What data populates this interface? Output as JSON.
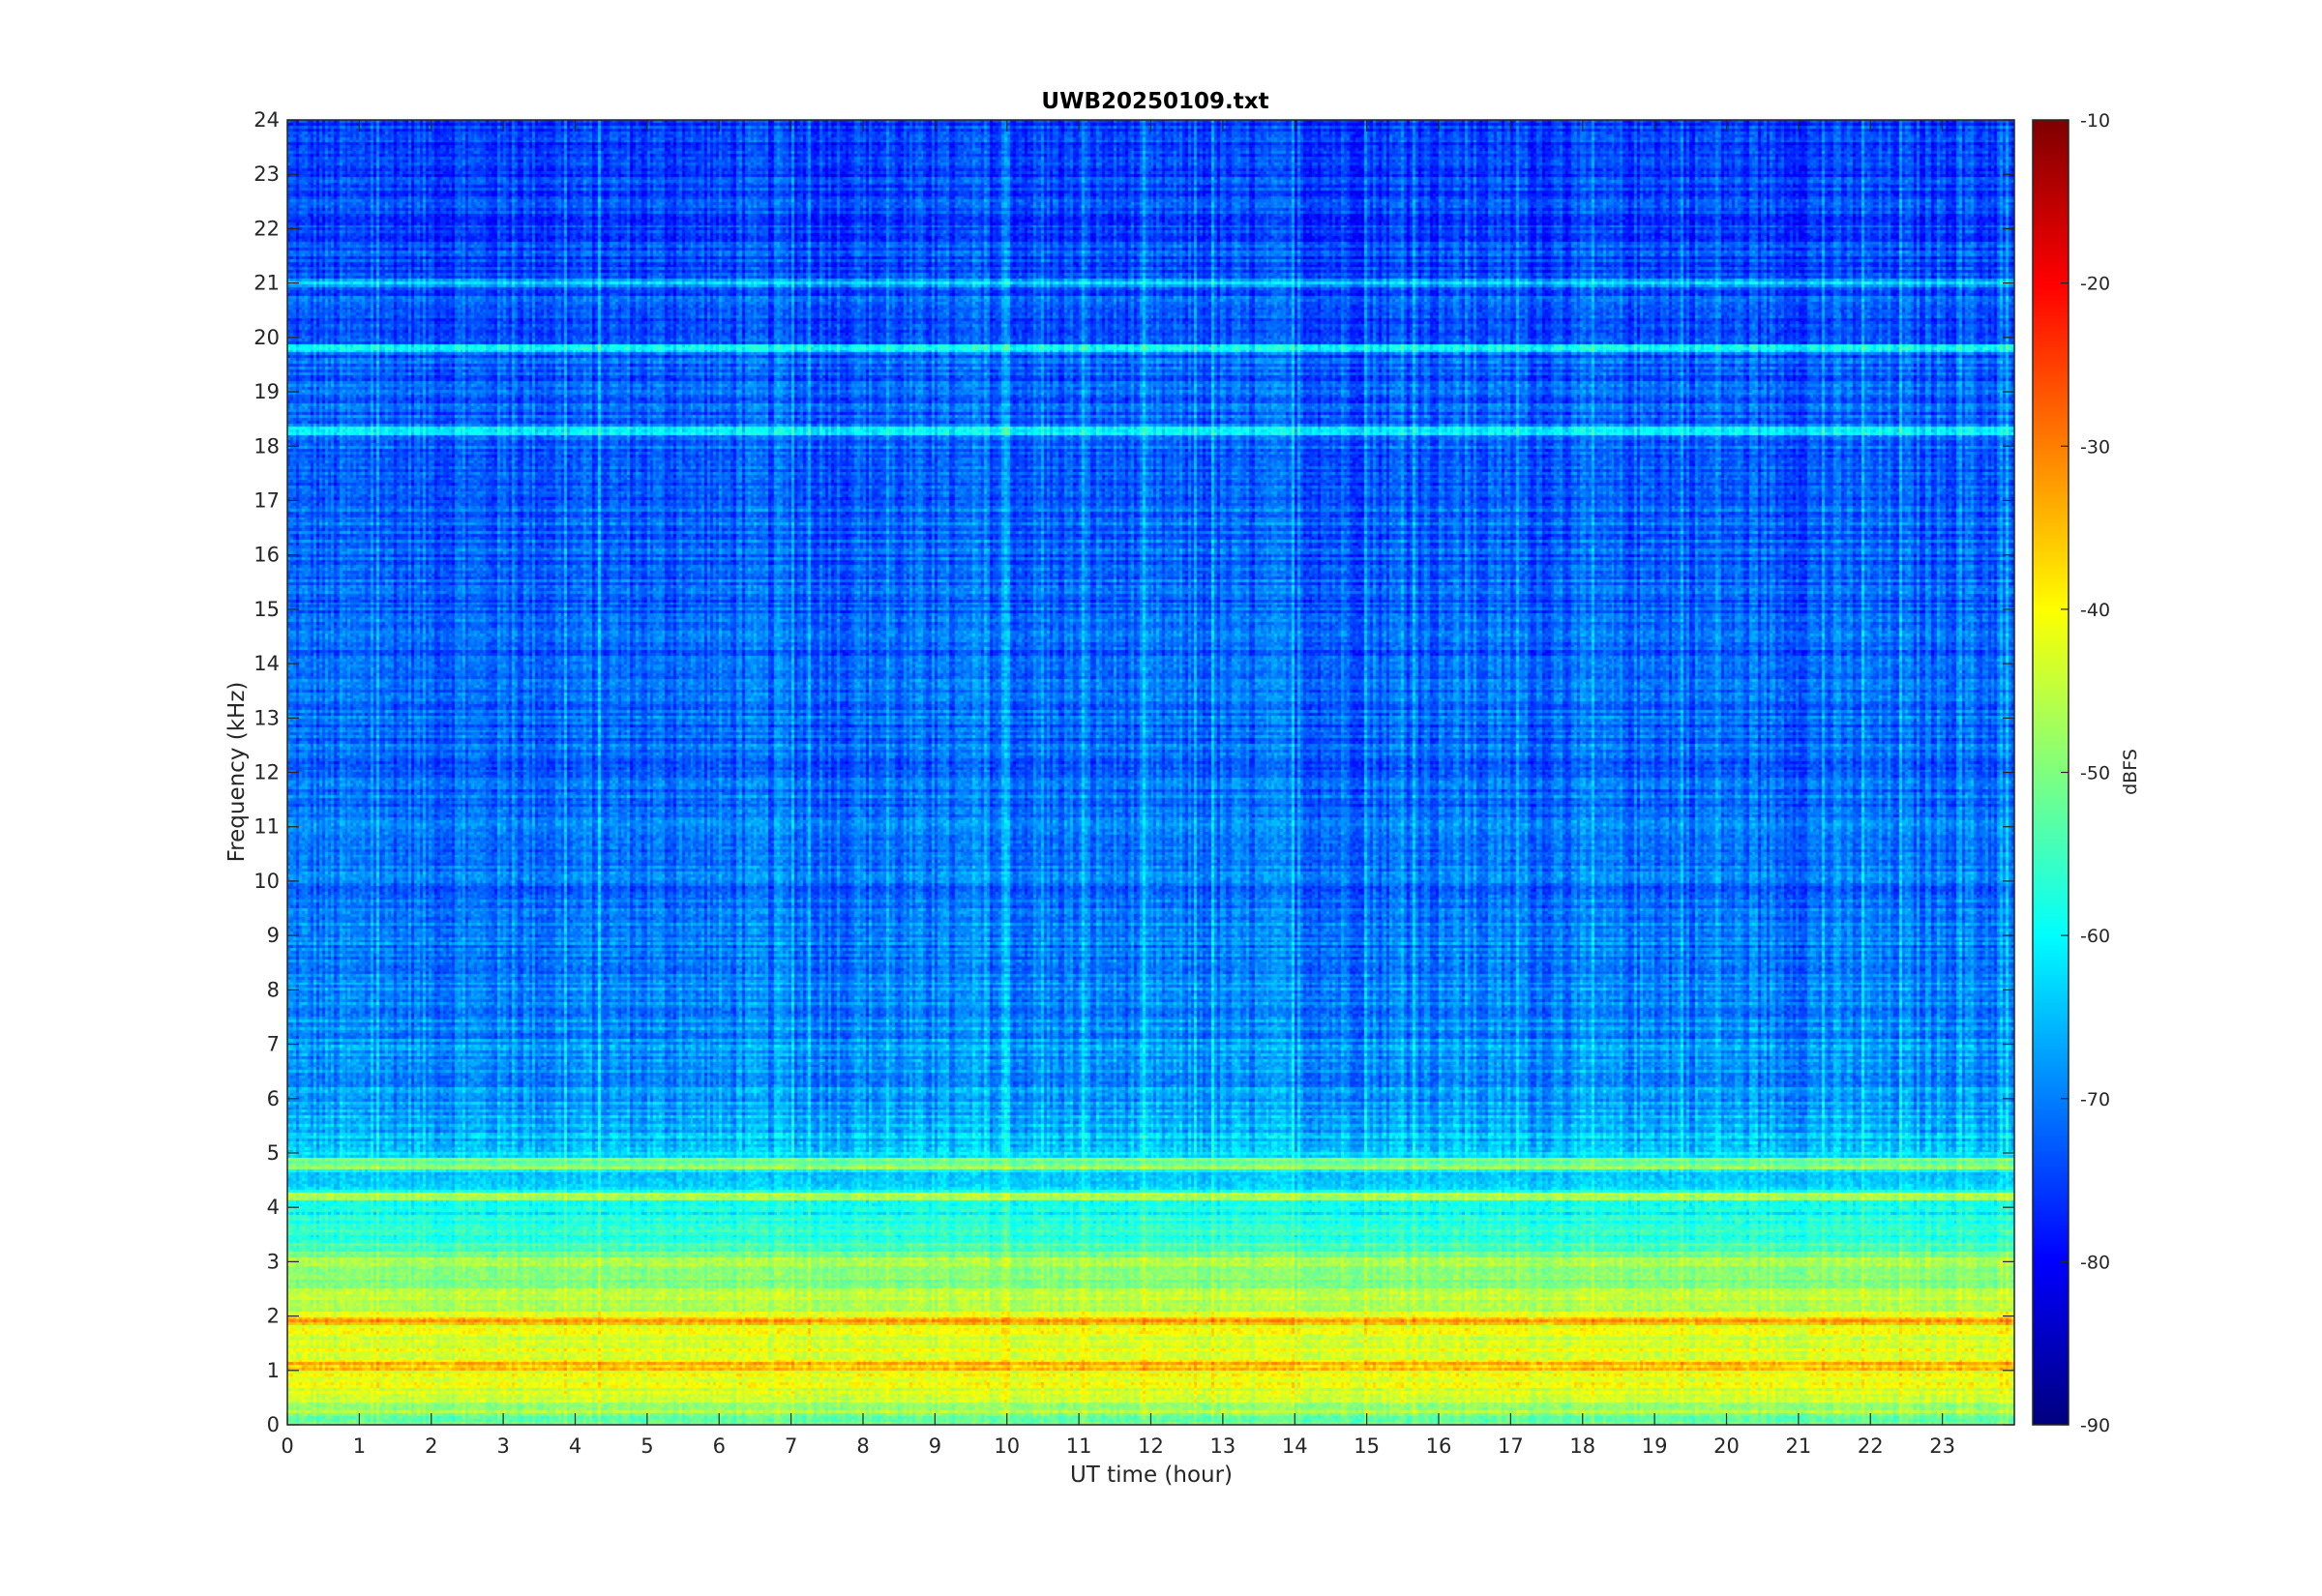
{
  "chart_data": {
    "type": "heatmap",
    "title": "UWB20250109.txt",
    "xlabel": "UT time (hour)",
    "ylabel": "Frequency (kHz)",
    "colorbar_label": "dBFS",
    "xlim": [
      0,
      24
    ],
    "ylim": [
      0,
      24
    ],
    "clim": [
      -90,
      -10
    ],
    "colormap": "jet",
    "x_ticks": [
      0,
      1,
      2,
      3,
      4,
      5,
      6,
      7,
      8,
      9,
      10,
      11,
      12,
      13,
      14,
      15,
      16,
      17,
      18,
      19,
      20,
      21,
      22,
      23
    ],
    "y_ticks": [
      0,
      1,
      2,
      3,
      4,
      5,
      6,
      7,
      8,
      9,
      10,
      11,
      12,
      13,
      14,
      15,
      16,
      17,
      18,
      19,
      20,
      21,
      22,
      23,
      24
    ],
    "colorbar_ticks": [
      -90,
      -80,
      -70,
      -60,
      -50,
      -40,
      -30,
      -20,
      -10
    ],
    "background_level_dbfs": -72,
    "frequency_profile": [
      {
        "khz": 0.0,
        "dbfs": -52
      },
      {
        "khz": 0.5,
        "dbfs": -44
      },
      {
        "khz": 1.0,
        "dbfs": -41
      },
      {
        "khz": 1.5,
        "dbfs": -42
      },
      {
        "khz": 2.0,
        "dbfs": -44
      },
      {
        "khz": 2.5,
        "dbfs": -48
      },
      {
        "khz": 3.0,
        "dbfs": -52
      },
      {
        "khz": 3.5,
        "dbfs": -57
      },
      {
        "khz": 4.0,
        "dbfs": -60
      },
      {
        "khz": 5.0,
        "dbfs": -64
      },
      {
        "khz": 6.0,
        "dbfs": -68
      },
      {
        "khz": 8.0,
        "dbfs": -70
      },
      {
        "khz": 12.0,
        "dbfs": -72
      },
      {
        "khz": 20.0,
        "dbfs": -73
      },
      {
        "khz": 24.0,
        "dbfs": -76
      }
    ],
    "persistent_lines_khz": [
      {
        "khz": 19.8,
        "dbfs": -60
      },
      {
        "khz": 18.3,
        "dbfs": -63
      },
      {
        "khz": 21.0,
        "dbfs": -65
      },
      {
        "khz": 4.2,
        "dbfs": -45
      },
      {
        "khz": 4.8,
        "dbfs": -50
      },
      {
        "khz": 3.0,
        "dbfs": -46
      },
      {
        "khz": 1.9,
        "dbfs": -33
      },
      {
        "khz": 1.05,
        "dbfs": -35
      }
    ]
  }
}
